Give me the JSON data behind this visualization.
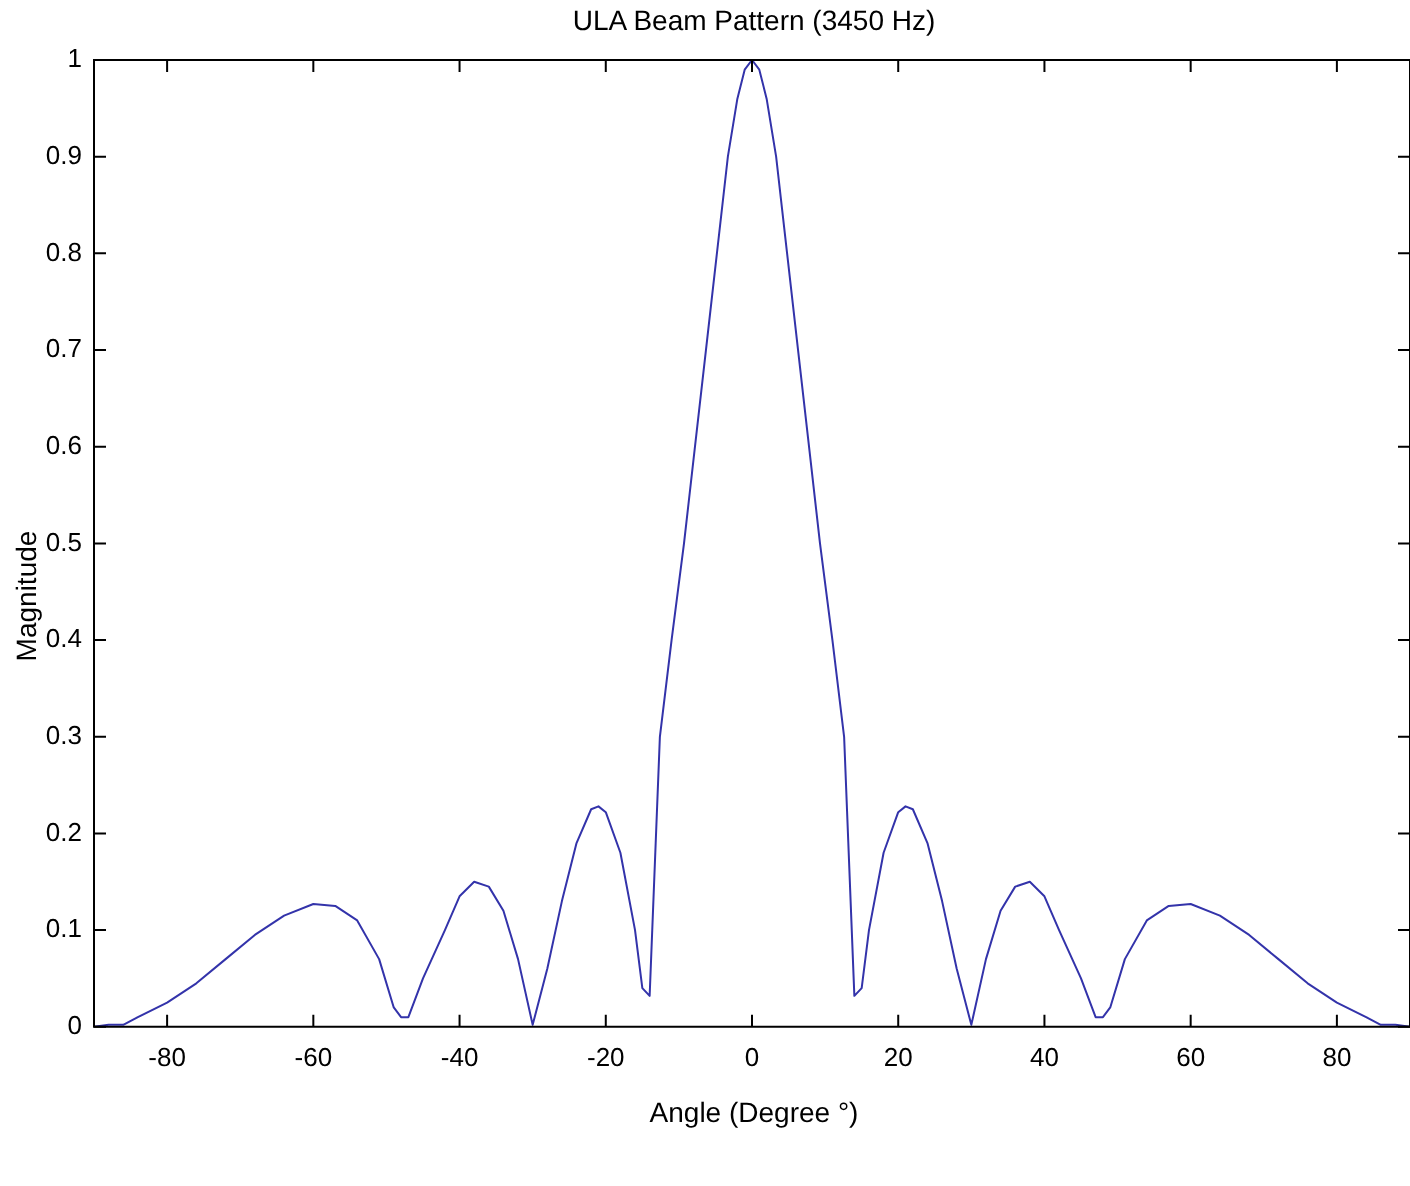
{
  "chart_data": {
    "type": "line",
    "title": "ULA Beam Pattern (3450 Hz)",
    "xlabel": "Angle (Degree °)",
    "ylabel": "Magnitude",
    "xlim": [
      -90,
      90
    ],
    "xticks": [
      -80,
      -60,
      -40,
      -20,
      0,
      20,
      40,
      60,
      80
    ],
    "ylim": [
      0,
      1
    ],
    "yticks": [
      0,
      0.1,
      0.2,
      0.3,
      0.4,
      0.5,
      0.6,
      0.7,
      0.8,
      0.9,
      1
    ],
    "grid": false,
    "legend": false,
    "marker": "none",
    "line_style": "solid",
    "x": [
      -90,
      -88,
      -86,
      -84,
      -80,
      -76,
      -72,
      -68,
      -64,
      -60,
      -57,
      -54,
      -51,
      -49,
      -48,
      -47,
      -45,
      -42,
      -40,
      -38,
      -36,
      -34,
      -32,
      -30,
      -28,
      -26,
      -24,
      -22,
      -21,
      -20,
      -18,
      -16,
      -15,
      -14,
      -12.6,
      -11,
      -9.3,
      -7.8,
      -6.3,
      -4.8,
      -3.3,
      -2,
      -1,
      0,
      1,
      2,
      3.3,
      4.8,
      6.3,
      7.8,
      9.3,
      11,
      12.6,
      14,
      15,
      16,
      18,
      20,
      21,
      22,
      24,
      26,
      28,
      30,
      32,
      34,
      36,
      38,
      40,
      42,
      45,
      47,
      48,
      49,
      51,
      54,
      57,
      60,
      64,
      68,
      72,
      76,
      80,
      84,
      86,
      88,
      90
    ],
    "series": [
      {
        "color": "#3333aa",
        "values": [
          0,
          0.002,
          0.002,
          0.01,
          0.025,
          0.045,
          0.07,
          0.095,
          0.115,
          0.127,
          0.125,
          0.11,
          0.07,
          0.02,
          0.01,
          0.01,
          0.05,
          0.1,
          0.135,
          0.15,
          0.145,
          0.12,
          0.07,
          0.002,
          0.06,
          0.13,
          0.19,
          0.225,
          0.228,
          0.222,
          0.18,
          0.1,
          0.04,
          0.032,
          0.3,
          0.4,
          0.5,
          0.6,
          0.7,
          0.8,
          0.9,
          0.96,
          0.99,
          1,
          0.99,
          0.96,
          0.9,
          0.8,
          0.7,
          0.6,
          0.5,
          0.4,
          0.3,
          0.032,
          0.04,
          0.1,
          0.18,
          0.222,
          0.228,
          0.225,
          0.19,
          0.13,
          0.06,
          0.002,
          0.07,
          0.12,
          0.145,
          0.15,
          0.135,
          0.1,
          0.05,
          0.01,
          0.01,
          0.02,
          0.07,
          0.11,
          0.125,
          0.127,
          0.115,
          0.095,
          0.07,
          0.045,
          0.025,
          0.01,
          0.002,
          0.002,
          0
        ]
      }
    ]
  }
}
